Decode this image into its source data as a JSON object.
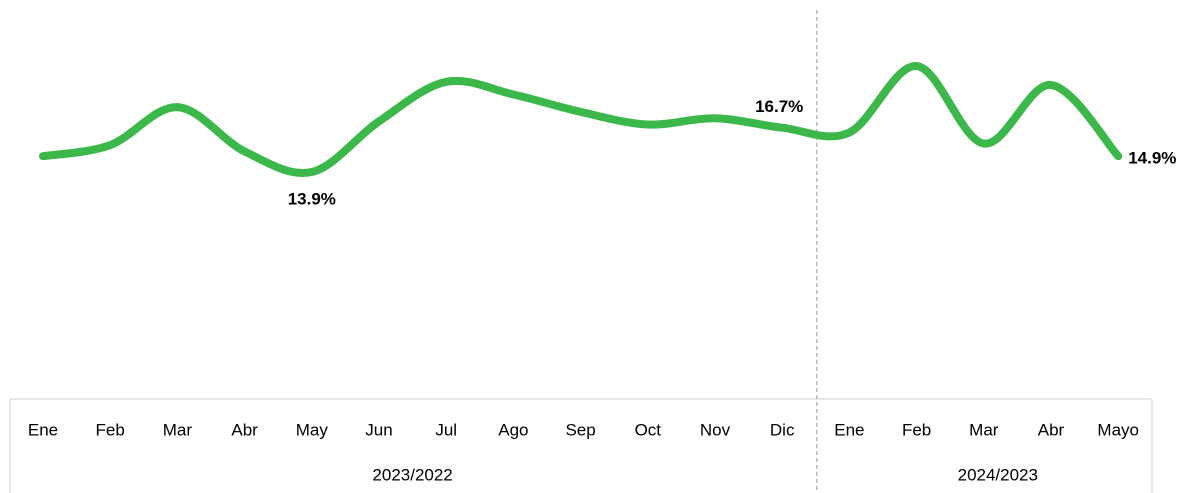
{
  "chart_data": {
    "type": "line",
    "groups": [
      {
        "label": "2023/2022",
        "categories": [
          "Ene",
          "Feb",
          "Mar",
          "Abr",
          "May",
          "Jun",
          "Jul",
          "Ago",
          "Sep",
          "Oct",
          "Nov",
          "Dic"
        ]
      },
      {
        "label": "2024/2023",
        "categories": [
          "Ene",
          "Feb",
          "Mar",
          "Abr",
          "Mayo"
        ]
      }
    ],
    "values": [
      14.9,
      15.6,
      18.0,
      15.2,
      13.9,
      17.1,
      19.6,
      18.8,
      17.7,
      16.9,
      17.3,
      16.7,
      16.4,
      20.6,
      15.7,
      19.4,
      14.9
    ],
    "value_labels": [
      null,
      null,
      null,
      null,
      "13.9%",
      null,
      null,
      null,
      null,
      null,
      null,
      "16.7%",
      null,
      null,
      null,
      null,
      "14.9%"
    ],
    "color": "#3cb84a"
  }
}
